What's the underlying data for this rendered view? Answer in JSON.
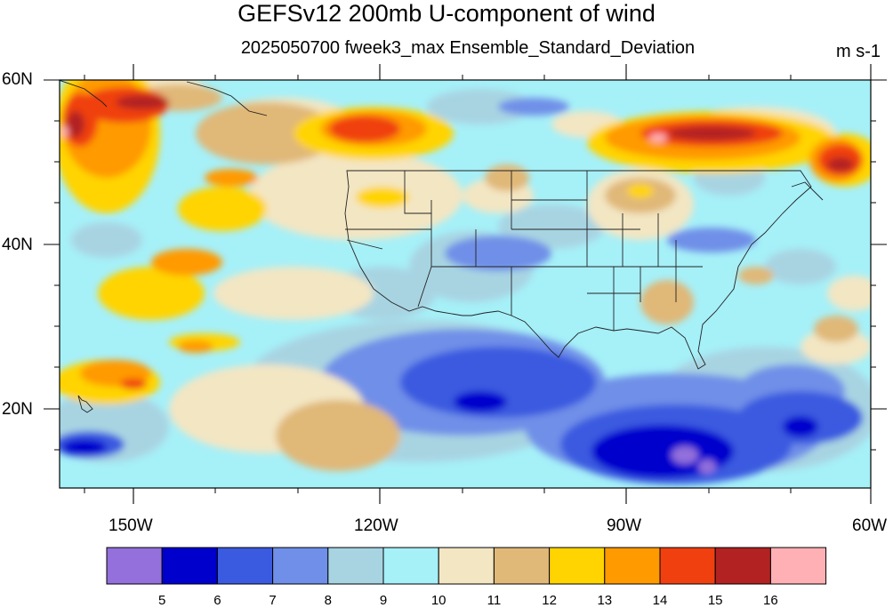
{
  "title": "GEFSv12 200mb U-component of wind",
  "subtitle": "2025050700 fweek3_max Ensemble_Standard_Deviation",
  "units": "m s-1",
  "lat_labels": [
    "60N",
    "40N",
    "20N"
  ],
  "lon_labels": [
    "150W",
    "120W",
    "90W",
    "60W"
  ],
  "colorbar": {
    "colors": [
      "#9370db",
      "#0000cd",
      "#3a5ae0",
      "#6f8fe8",
      "#a8d4e2",
      "#a6f0f8",
      "#f3e6c3",
      "#e0b878",
      "#ffd400",
      "#ff9a00",
      "#f04010",
      "#b22222",
      "#ffb0b5"
    ],
    "labels": [
      "5",
      "6",
      "7",
      "8",
      "9",
      "10",
      "11",
      "12",
      "13",
      "14",
      "15",
      "16"
    ]
  }
}
